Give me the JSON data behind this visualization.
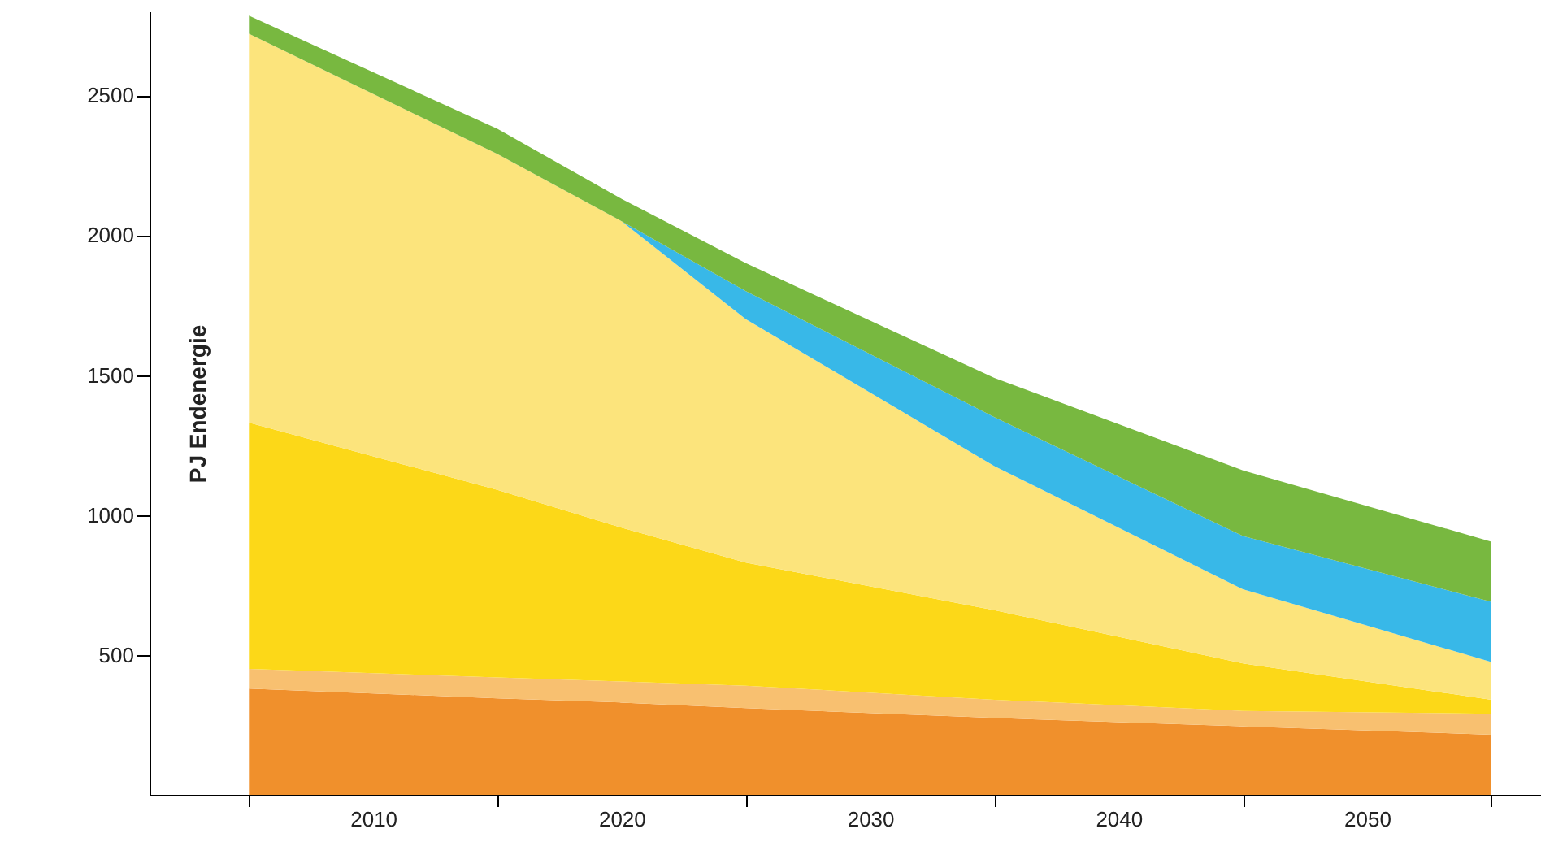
{
  "chart_data": {
    "type": "area",
    "stacked": true,
    "ylabel": "PJ Endenergie",
    "x": [
      2005,
      2015,
      2020,
      2025,
      2035,
      2045,
      2055
    ],
    "xlim": [
      2001,
      2057
    ],
    "xticks": [
      {
        "value": 2005,
        "label": null
      },
      2010,
      {
        "value": 2015,
        "label": null
      },
      2020,
      {
        "value": 2025,
        "label": null
      },
      2030,
      {
        "value": 2035,
        "label": null
      },
      2040,
      {
        "value": 2045,
        "label": null
      },
      2050,
      {
        "value": 2055,
        "label": null
      }
    ],
    "ylim": [
      0,
      2800
    ],
    "yticks": [
      500,
      1000,
      1500,
      2000,
      2500
    ],
    "grid": false,
    "series": [
      {
        "color": "#f0902c",
        "values": [
          380,
          345,
          330,
          310,
          275,
          245,
          215
        ]
      },
      {
        "color": "#f8c070",
        "values": [
          70,
          75,
          75,
          80,
          65,
          55,
          75
        ]
      },
      {
        "color": "#fcd818",
        "values": [
          880,
          670,
          550,
          440,
          320,
          170,
          50
        ]
      },
      {
        "color": "#fce47c",
        "values": [
          1390,
          1200,
          1095,
          870,
          515,
          265,
          135
        ]
      },
      {
        "color": "#38b8e8",
        "values": [
          0,
          0,
          0,
          100,
          175,
          190,
          215
        ]
      },
      {
        "color": "#78b840",
        "values": [
          65,
          90,
          80,
          100,
          140,
          235,
          215
        ]
      }
    ]
  }
}
